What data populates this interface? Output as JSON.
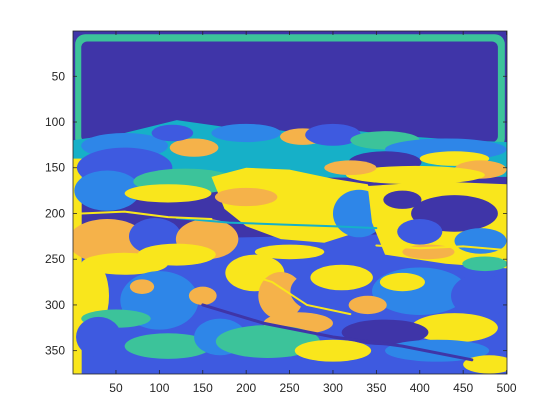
{
  "chart_data": {
    "type": "heatmap",
    "title": "",
    "xlabel": "",
    "ylabel": "",
    "image_width": 500,
    "image_height": 375,
    "xlim": [
      0.5,
      500.5
    ],
    "ylim": [
      0.5,
      375.5
    ],
    "y_direction": "reverse",
    "xticks": [
      50,
      100,
      150,
      200,
      250,
      300,
      350,
      400,
      450,
      500
    ],
    "yticks": [
      50,
      100,
      150,
      200,
      250,
      300,
      350
    ],
    "grid": false,
    "colorbar": false,
    "colormap": "parula",
    "class_colors": [
      "#3f35a8",
      "#3e5ae0",
      "#2e86e8",
      "#16b0c8",
      "#3cc39a",
      "#f5b24a",
      "#f9e61c"
    ]
  }
}
